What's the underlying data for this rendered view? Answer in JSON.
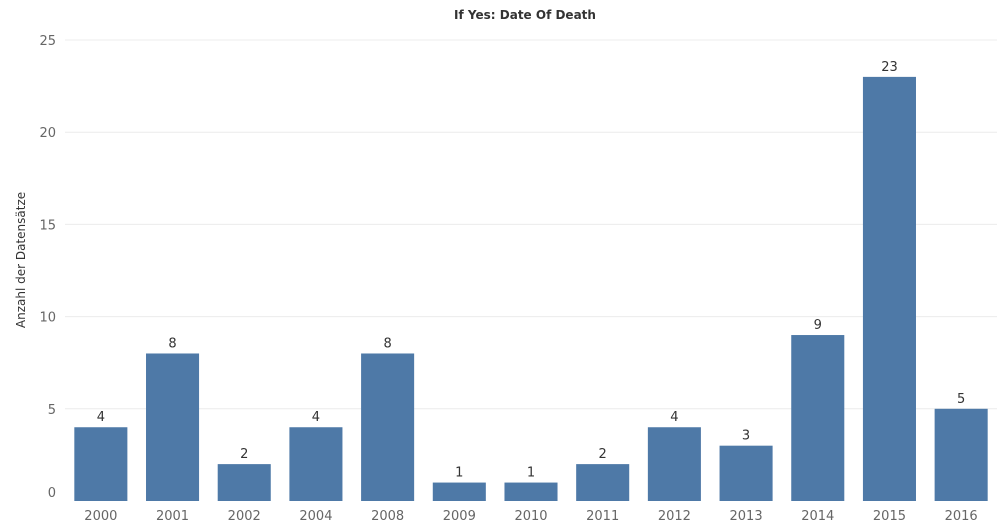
{
  "chart_data": {
    "type": "bar",
    "title": "If Yes: Date Of Death",
    "xlabel": "",
    "ylabel": "Anzahl der Datensätze",
    "categories": [
      "2000",
      "2001",
      "2002",
      "2004",
      "2008",
      "2009",
      "2010",
      "2011",
      "2012",
      "2013",
      "2014",
      "2015",
      "2016"
    ],
    "values": [
      4,
      8,
      2,
      4,
      8,
      1,
      1,
      2,
      4,
      3,
      9,
      23,
      5
    ],
    "ylim": [
      0,
      25
    ],
    "yticks": [
      "0",
      "5",
      "10",
      "15",
      "20",
      "25"
    ],
    "grid": true,
    "legend": "none",
    "bar_color": "#4e79a7"
  }
}
